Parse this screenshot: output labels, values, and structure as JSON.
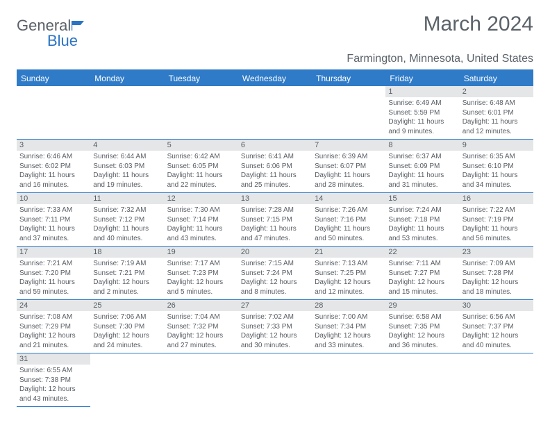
{
  "logo": {
    "text1": "General",
    "text2": "Blue",
    "flag_color": "#2b74c4"
  },
  "title": "March 2024",
  "subtitle": "Farmington, Minnesota, United States",
  "colors": {
    "header_bg": "#2f7bc8",
    "header_fg": "#ffffff",
    "daynum_bg": "#e4e6e8",
    "text": "#575d63",
    "rule": "#2f7bc8"
  },
  "days_of_week": [
    "Sunday",
    "Monday",
    "Tuesday",
    "Wednesday",
    "Thursday",
    "Friday",
    "Saturday"
  ],
  "first_weekday_index": 5,
  "days": [
    {
      "n": 1,
      "sunrise": "6:49 AM",
      "sunset": "5:59 PM",
      "daylight": "11 hours and 9 minutes."
    },
    {
      "n": 2,
      "sunrise": "6:48 AM",
      "sunset": "6:01 PM",
      "daylight": "11 hours and 12 minutes."
    },
    {
      "n": 3,
      "sunrise": "6:46 AM",
      "sunset": "6:02 PM",
      "daylight": "11 hours and 16 minutes."
    },
    {
      "n": 4,
      "sunrise": "6:44 AM",
      "sunset": "6:03 PM",
      "daylight": "11 hours and 19 minutes."
    },
    {
      "n": 5,
      "sunrise": "6:42 AM",
      "sunset": "6:05 PM",
      "daylight": "11 hours and 22 minutes."
    },
    {
      "n": 6,
      "sunrise": "6:41 AM",
      "sunset": "6:06 PM",
      "daylight": "11 hours and 25 minutes."
    },
    {
      "n": 7,
      "sunrise": "6:39 AM",
      "sunset": "6:07 PM",
      "daylight": "11 hours and 28 minutes."
    },
    {
      "n": 8,
      "sunrise": "6:37 AM",
      "sunset": "6:09 PM",
      "daylight": "11 hours and 31 minutes."
    },
    {
      "n": 9,
      "sunrise": "6:35 AM",
      "sunset": "6:10 PM",
      "daylight": "11 hours and 34 minutes."
    },
    {
      "n": 10,
      "sunrise": "7:33 AM",
      "sunset": "7:11 PM",
      "daylight": "11 hours and 37 minutes."
    },
    {
      "n": 11,
      "sunrise": "7:32 AM",
      "sunset": "7:12 PM",
      "daylight": "11 hours and 40 minutes."
    },
    {
      "n": 12,
      "sunrise": "7:30 AM",
      "sunset": "7:14 PM",
      "daylight": "11 hours and 43 minutes."
    },
    {
      "n": 13,
      "sunrise": "7:28 AM",
      "sunset": "7:15 PM",
      "daylight": "11 hours and 47 minutes."
    },
    {
      "n": 14,
      "sunrise": "7:26 AM",
      "sunset": "7:16 PM",
      "daylight": "11 hours and 50 minutes."
    },
    {
      "n": 15,
      "sunrise": "7:24 AM",
      "sunset": "7:18 PM",
      "daylight": "11 hours and 53 minutes."
    },
    {
      "n": 16,
      "sunrise": "7:22 AM",
      "sunset": "7:19 PM",
      "daylight": "11 hours and 56 minutes."
    },
    {
      "n": 17,
      "sunrise": "7:21 AM",
      "sunset": "7:20 PM",
      "daylight": "11 hours and 59 minutes."
    },
    {
      "n": 18,
      "sunrise": "7:19 AM",
      "sunset": "7:21 PM",
      "daylight": "12 hours and 2 minutes."
    },
    {
      "n": 19,
      "sunrise": "7:17 AM",
      "sunset": "7:23 PM",
      "daylight": "12 hours and 5 minutes."
    },
    {
      "n": 20,
      "sunrise": "7:15 AM",
      "sunset": "7:24 PM",
      "daylight": "12 hours and 8 minutes."
    },
    {
      "n": 21,
      "sunrise": "7:13 AM",
      "sunset": "7:25 PM",
      "daylight": "12 hours and 12 minutes."
    },
    {
      "n": 22,
      "sunrise": "7:11 AM",
      "sunset": "7:27 PM",
      "daylight": "12 hours and 15 minutes."
    },
    {
      "n": 23,
      "sunrise": "7:09 AM",
      "sunset": "7:28 PM",
      "daylight": "12 hours and 18 minutes."
    },
    {
      "n": 24,
      "sunrise": "7:08 AM",
      "sunset": "7:29 PM",
      "daylight": "12 hours and 21 minutes."
    },
    {
      "n": 25,
      "sunrise": "7:06 AM",
      "sunset": "7:30 PM",
      "daylight": "12 hours and 24 minutes."
    },
    {
      "n": 26,
      "sunrise": "7:04 AM",
      "sunset": "7:32 PM",
      "daylight": "12 hours and 27 minutes."
    },
    {
      "n": 27,
      "sunrise": "7:02 AM",
      "sunset": "7:33 PM",
      "daylight": "12 hours and 30 minutes."
    },
    {
      "n": 28,
      "sunrise": "7:00 AM",
      "sunset": "7:34 PM",
      "daylight": "12 hours and 33 minutes."
    },
    {
      "n": 29,
      "sunrise": "6:58 AM",
      "sunset": "7:35 PM",
      "daylight": "12 hours and 36 minutes."
    },
    {
      "n": 30,
      "sunrise": "6:56 AM",
      "sunset": "7:37 PM",
      "daylight": "12 hours and 40 minutes."
    },
    {
      "n": 31,
      "sunrise": "6:55 AM",
      "sunset": "7:38 PM",
      "daylight": "12 hours and 43 minutes."
    }
  ],
  "labels": {
    "sunrise": "Sunrise:",
    "sunset": "Sunset:",
    "daylight": "Daylight:"
  }
}
